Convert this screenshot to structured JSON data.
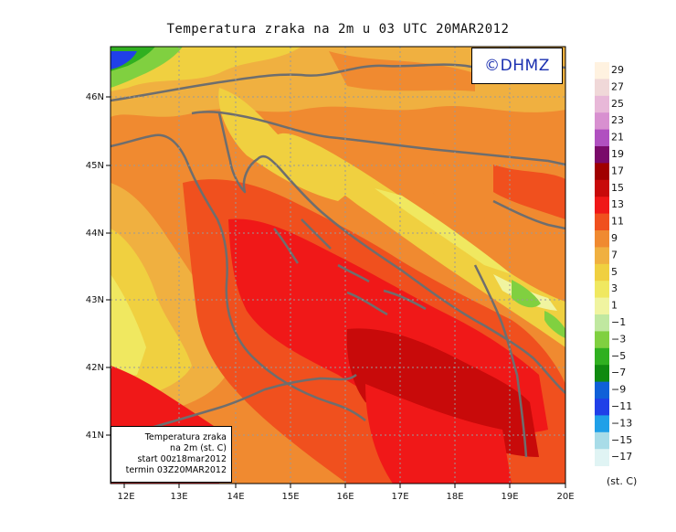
{
  "title": "Temperatura zraka na 2m u 03 UTC 20MAR2012",
  "logo": "©DHMZ",
  "info_box": {
    "line1": "Temperatura zraka",
    "line2": "na 2m (st. C)",
    "line3": "start 00z18mar2012",
    "line4": "termin 03Z20MAR2012"
  },
  "lat_labels": [
    "46N",
    "45N",
    "44N",
    "43N",
    "42N",
    "41N"
  ],
  "lon_labels": [
    "12E",
    "13E",
    "14E",
    "15E",
    "16E",
    "17E",
    "18E",
    "19E",
    "20E"
  ],
  "colorbar": {
    "unit": "(st. C)",
    "labels": [
      "29",
      "27",
      "25",
      "23",
      "21",
      "19",
      "17",
      "15",
      "13",
      "11",
      "9",
      "7",
      "5",
      "3",
      "1",
      "−1",
      "−3",
      "−5",
      "−7",
      "−9",
      "−11",
      "−13",
      "−15",
      "−17"
    ],
    "colors": [
      "#fff2e0",
      "#f0d8d8",
      "#e8b8d8",
      "#d890d0",
      "#b050c0",
      "#7a0a6a",
      "#a00000",
      "#c80a0a",
      "#f01818",
      "#f0501e",
      "#f08a30",
      "#f0b040",
      "#f0d040",
      "#f0e860",
      "#f0f4a0",
      "#c0e8a0",
      "#80d040",
      "#30b020",
      "#108a10",
      "#1060d8",
      "#2040e8",
      "#20a0e8",
      "#a8dce8",
      "#e0f4f4"
    ]
  }
}
